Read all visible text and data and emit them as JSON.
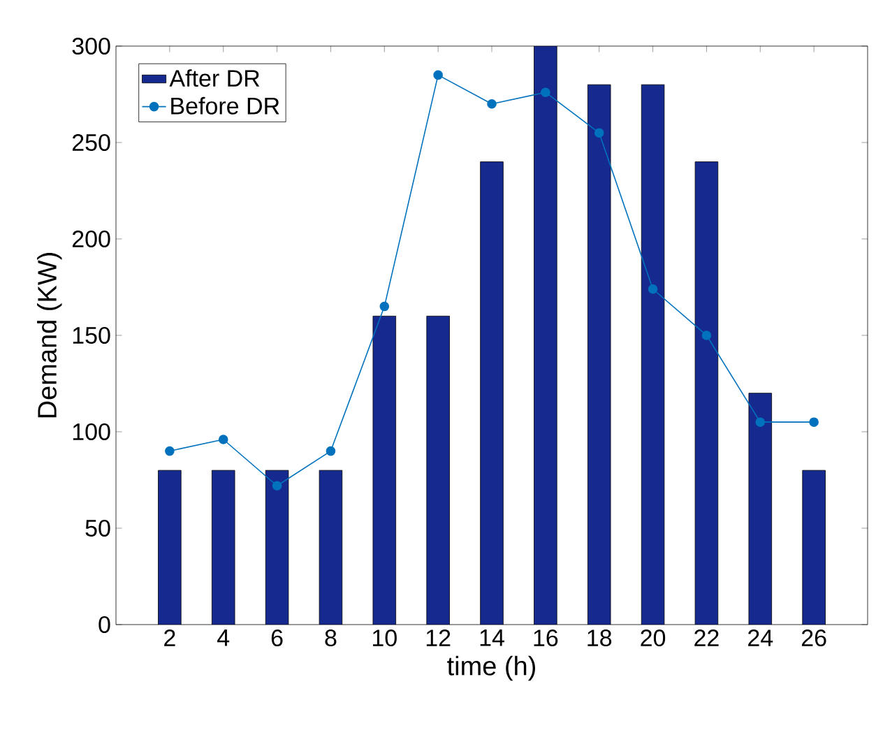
{
  "chart_data": {
    "type": "bar",
    "xlabel": "time (h)",
    "ylabel": "Demand (KW)",
    "x": [
      2,
      4,
      6,
      8,
      10,
      12,
      14,
      16,
      18,
      20,
      22,
      24,
      26
    ],
    "series": [
      {
        "name": "After DR",
        "color": "#15298f",
        "values": [
          80,
          80,
          80,
          80,
          160,
          160,
          240,
          300,
          280,
          280,
          240,
          120,
          80
        ]
      },
      {
        "name": "Before DR",
        "type": "line",
        "color": "#0072bd",
        "marker": "circle",
        "values": [
          90,
          96,
          72,
          90,
          165,
          285,
          270,
          276,
          255,
          174,
          150,
          105,
          105
        ]
      }
    ],
    "xlim": [
      0,
      28
    ],
    "ylim": [
      0,
      300
    ],
    "xticks": [
      2,
      4,
      6,
      8,
      10,
      12,
      14,
      16,
      18,
      20,
      22,
      24,
      26
    ],
    "yticks": [
      0,
      50,
      100,
      150,
      200,
      250,
      300
    ],
    "legend": "top left"
  }
}
